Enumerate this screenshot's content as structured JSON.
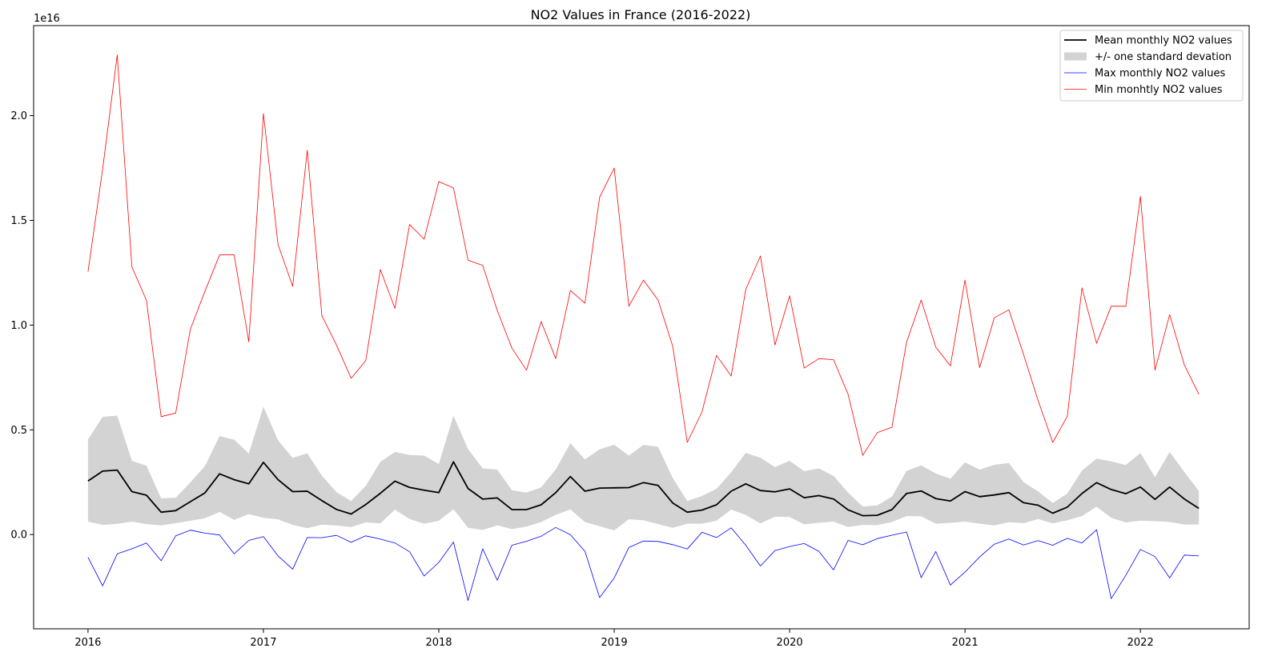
{
  "chart_data": {
    "type": "line",
    "title": "NO2 Values in France (2016-2022)",
    "xlabel": "",
    "ylabel": "",
    "y_offset_label": "1e16",
    "y_scale_factor": 1e+16,
    "xlim": [
      2015.69,
      2022.62
    ],
    "ylim": [
      -0.45,
      2.43
    ],
    "x_ticks": [
      2016,
      2017,
      2018,
      2019,
      2020,
      2021,
      2022
    ],
    "x_tick_labels": [
      "2016",
      "2017",
      "2018",
      "2019",
      "2020",
      "2021",
      "2022"
    ],
    "y_ticks": [
      0.0,
      0.5,
      1.0,
      1.5,
      2.0
    ],
    "y_tick_labels": [
      "0.0",
      "0.5",
      "1.0",
      "1.5",
      "2.0"
    ],
    "grid": false,
    "legend_position": "top-right",
    "x_start": "2016-01",
    "x_step": "1 month",
    "series": [
      {
        "name": "Mean monthly NO2 values",
        "style": "line",
        "color": "#000000",
        "values": [
          0.256,
          0.303,
          0.308,
          0.205,
          0.188,
          0.107,
          0.114,
          0.157,
          0.199,
          0.29,
          0.262,
          0.242,
          0.345,
          0.262,
          0.205,
          0.207,
          0.162,
          0.12,
          0.098,
          0.143,
          0.197,
          0.255,
          0.225,
          0.212,
          0.2,
          0.347,
          0.22,
          0.169,
          0.175,
          0.119,
          0.119,
          0.142,
          0.2,
          0.277,
          0.207,
          0.222,
          0.223,
          0.224,
          0.248,
          0.235,
          0.151,
          0.107,
          0.117,
          0.142,
          0.207,
          0.242,
          0.21,
          0.204,
          0.218,
          0.176,
          0.186,
          0.17,
          0.118,
          0.09,
          0.092,
          0.119,
          0.196,
          0.208,
          0.172,
          0.16,
          0.205,
          0.181,
          0.189,
          0.2,
          0.152,
          0.14,
          0.102,
          0.131,
          0.196,
          0.248,
          0.215,
          0.195,
          0.227,
          0.168,
          0.227,
          0.17,
          0.125
        ]
      },
      {
        "name": "+/- one standard devation",
        "style": "band",
        "color": "#d3d3d3",
        "upper": [
          0.455,
          0.562,
          0.568,
          0.352,
          0.329,
          0.173,
          0.176,
          0.249,
          0.327,
          0.47,
          0.453,
          0.387,
          0.61,
          0.45,
          0.366,
          0.388,
          0.281,
          0.202,
          0.16,
          0.232,
          0.347,
          0.394,
          0.38,
          0.377,
          0.337,
          0.568,
          0.408,
          0.316,
          0.31,
          0.212,
          0.2,
          0.225,
          0.311,
          0.436,
          0.359,
          0.407,
          0.429,
          0.377,
          0.428,
          0.419,
          0.27,
          0.16,
          0.184,
          0.218,
          0.297,
          0.39,
          0.367,
          0.322,
          0.352,
          0.303,
          0.316,
          0.28,
          0.2,
          0.134,
          0.139,
          0.181,
          0.304,
          0.33,
          0.292,
          0.266,
          0.345,
          0.31,
          0.333,
          0.342,
          0.25,
          0.206,
          0.151,
          0.196,
          0.306,
          0.362,
          0.35,
          0.332,
          0.389,
          0.274,
          0.394,
          0.299,
          0.208
        ],
        "lower": [
          0.062,
          0.046,
          0.051,
          0.062,
          0.05,
          0.044,
          0.054,
          0.066,
          0.078,
          0.108,
          0.07,
          0.097,
          0.08,
          0.072,
          0.046,
          0.03,
          0.047,
          0.043,
          0.036,
          0.058,
          0.053,
          0.119,
          0.074,
          0.052,
          0.066,
          0.121,
          0.032,
          0.022,
          0.044,
          0.026,
          0.038,
          0.06,
          0.094,
          0.12,
          0.06,
          0.04,
          0.02,
          0.073,
          0.068,
          0.05,
          0.032,
          0.052,
          0.052,
          0.066,
          0.119,
          0.094,
          0.053,
          0.085,
          0.084,
          0.049,
          0.056,
          0.062,
          0.036,
          0.046,
          0.045,
          0.06,
          0.088,
          0.087,
          0.052,
          0.056,
          0.062,
          0.052,
          0.044,
          0.059,
          0.054,
          0.074,
          0.053,
          0.068,
          0.088,
          0.133,
          0.08,
          0.058,
          0.066,
          0.064,
          0.06,
          0.048,
          0.048
        ]
      },
      {
        "name": "Max monthly NO2 values",
        "style": "line",
        "color": "#0000ff",
        "values": [
          -0.109,
          -0.245,
          -0.092,
          -0.068,
          -0.04,
          -0.125,
          -0.006,
          0.021,
          0.007,
          -0.002,
          -0.092,
          -0.028,
          -0.01,
          -0.102,
          -0.165,
          -0.014,
          -0.015,
          -0.004,
          -0.037,
          -0.006,
          -0.022,
          -0.04,
          -0.082,
          -0.198,
          -0.133,
          -0.036,
          -0.315,
          -0.068,
          -0.218,
          -0.051,
          -0.032,
          -0.008,
          0.034,
          -0.001,
          -0.08,
          -0.301,
          -0.208,
          -0.062,
          -0.031,
          -0.033,
          -0.048,
          -0.069,
          0.011,
          -0.014,
          0.032,
          -0.051,
          -0.15,
          -0.077,
          -0.057,
          -0.043,
          -0.08,
          -0.169,
          -0.028,
          -0.049,
          -0.019,
          -0.003,
          0.012,
          -0.206,
          -0.081,
          -0.241,
          -0.179,
          -0.107,
          -0.046,
          -0.021,
          -0.05,
          -0.029,
          -0.051,
          -0.018,
          -0.04,
          0.023,
          -0.306,
          -0.195,
          -0.071,
          -0.105,
          -0.207,
          -0.098,
          -0.102
        ]
      },
      {
        "name": "Min monhtly NO2 values",
        "style": "line",
        "color": "#ff0000",
        "values": [
          1.255,
          1.745,
          2.29,
          1.278,
          1.118,
          0.563,
          0.58,
          0.98,
          1.161,
          1.335,
          1.336,
          0.92,
          2.01,
          1.385,
          1.185,
          1.835,
          1.045,
          0.905,
          0.746,
          0.83,
          1.265,
          1.08,
          1.48,
          1.41,
          1.685,
          1.655,
          1.31,
          1.285,
          1.07,
          0.89,
          0.785,
          1.017,
          0.84,
          1.165,
          1.105,
          1.61,
          1.75,
          1.09,
          1.215,
          1.12,
          0.9,
          0.44,
          0.585,
          0.855,
          0.757,
          1.17,
          1.33,
          0.905,
          1.14,
          0.795,
          0.84,
          0.835,
          0.67,
          0.378,
          0.487,
          0.512,
          0.918,
          1.12,
          0.895,
          0.805,
          1.215,
          0.797,
          1.035,
          1.073,
          0.86,
          0.64,
          0.44,
          0.565,
          1.178,
          0.913,
          1.09,
          1.09,
          1.615,
          0.785,
          1.05,
          0.81,
          0.67
        ]
      }
    ]
  }
}
